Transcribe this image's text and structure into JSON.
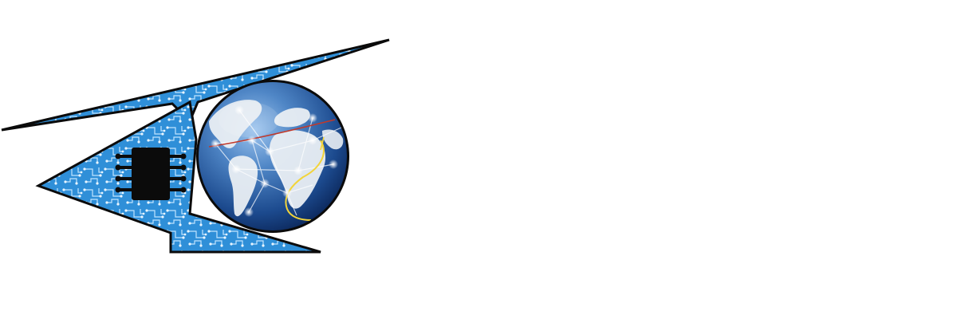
{
  "logo": {
    "icon": "circuit-globe-logo",
    "colors": {
      "circuit_blue": "#2f8fd8",
      "circuit_trace": "#bfe3ff",
      "outline": "#0b0b0b",
      "globe_ocean_dark": "#0d2d6c",
      "globe_ocean_light": "#6aa0d8",
      "land": "#f0f3f6",
      "chip": "#0b0b0b",
      "network_node": "#ffffff",
      "red_line": "#c0392b",
      "yellow_line": "#f2d43a"
    }
  }
}
